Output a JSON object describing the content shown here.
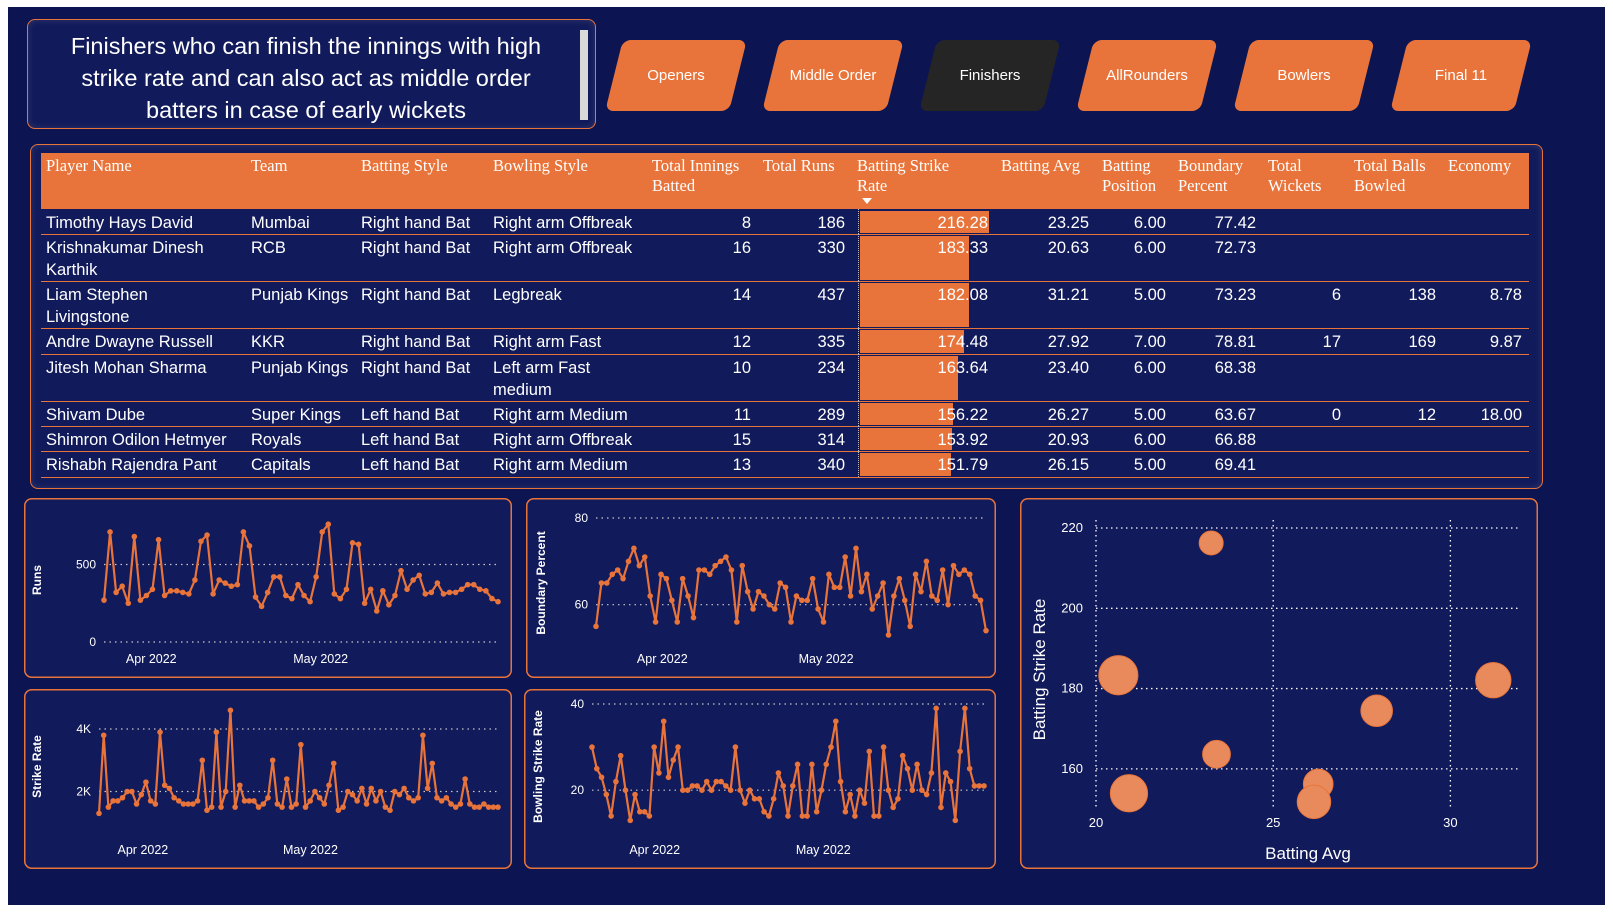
{
  "description": {
    "lines": [
      "Finishers who can finish the innings with high",
      "strike rate and can also act as middle order",
      "batters in case of early wickets"
    ]
  },
  "nav": [
    {
      "label": "Openers",
      "active": false
    },
    {
      "label": "Middle Order",
      "active": false
    },
    {
      "label": "Finishers",
      "active": true
    },
    {
      "label": "AllRounders",
      "active": false
    },
    {
      "label": "Bowlers",
      "active": false
    },
    {
      "label": "Final 11",
      "active": false
    }
  ],
  "table": {
    "headers": {
      "player": "Player Name",
      "team": "Team",
      "batting_style": "Batting Style",
      "bowling_style": "Bowling Style",
      "innings_1": "Total Innings",
      "innings_2": "Batted",
      "runs": "Total Runs",
      "sr_1": "Batting Strike",
      "sr_2": "Rate",
      "avg": "Batting Avg",
      "pos_1": "Batting",
      "pos_2": "Position",
      "bp_1": "Boundary",
      "bp_2": "Percent",
      "wk_1": "Total",
      "wk_2": "Wickets",
      "balls_1": "Total Balls",
      "balls_2": "Bowled",
      "economy": "Economy"
    },
    "sr_max": 216.28,
    "rows": [
      {
        "player_1": "Timothy Hays David",
        "player_2": "",
        "team": "Mumbai",
        "batting_style": "Right hand Bat",
        "bowling_1": "Right arm Offbreak",
        "bowling_2": "",
        "innings": "8",
        "runs": "186",
        "sr": "216.28",
        "sr_value": 216.28,
        "avg": "23.25",
        "pos": "6.00",
        "bp": "77.42",
        "wickets": "",
        "balls": "",
        "economy": ""
      },
      {
        "player_1": "Krishnakumar Dinesh",
        "player_2": "Karthik",
        "team": "RCB",
        "batting_style": "Right hand Bat",
        "bowling_1": "Right arm Offbreak",
        "bowling_2": "",
        "innings": "16",
        "runs": "330",
        "sr": "183.33",
        "sr_value": 183.33,
        "avg": "20.63",
        "pos": "6.00",
        "bp": "72.73",
        "wickets": "",
        "balls": "",
        "economy": ""
      },
      {
        "player_1": "Liam Stephen",
        "player_2": "Livingstone",
        "team": "Punjab Kings",
        "batting_style": "Right hand Bat",
        "bowling_1": "Legbreak",
        "bowling_2": "",
        "innings": "14",
        "runs": "437",
        "sr": "182.08",
        "sr_value": 182.08,
        "avg": "31.21",
        "pos": "5.00",
        "bp": "73.23",
        "wickets": "6",
        "balls": "138",
        "economy": "8.78"
      },
      {
        "player_1": "Andre Dwayne Russell",
        "player_2": "",
        "team": "KKR",
        "batting_style": "Right hand Bat",
        "bowling_1": "Right arm Fast",
        "bowling_2": "",
        "innings": "12",
        "runs": "335",
        "sr": "174.48",
        "sr_value": 174.48,
        "avg": "27.92",
        "pos": "7.00",
        "bp": "78.81",
        "wickets": "17",
        "balls": "169",
        "economy": "9.87"
      },
      {
        "player_1": "Jitesh Mohan Sharma",
        "player_2": "",
        "team": "Punjab Kings",
        "batting_style": "Right hand Bat",
        "bowling_1": "Left arm Fast",
        "bowling_2": "medium",
        "innings": "10",
        "runs": "234",
        "sr": "163.64",
        "sr_value": 163.64,
        "avg": "23.40",
        "pos": "6.00",
        "bp": "68.38",
        "wickets": "",
        "balls": "",
        "economy": ""
      },
      {
        "player_1": "Shivam Dube",
        "player_2": "",
        "team": "Super Kings",
        "batting_style": "Left hand Bat",
        "bowling_1": "Right arm Medium",
        "bowling_2": "",
        "innings": "11",
        "runs": "289",
        "sr": "156.22",
        "sr_value": 156.22,
        "avg": "26.27",
        "pos": "5.00",
        "bp": "63.67",
        "wickets": "0",
        "balls": "12",
        "economy": "18.00"
      },
      {
        "player_1": "Shimron Odilon Hetmyer",
        "player_2": "",
        "team": "Royals",
        "batting_style": "Left hand Bat",
        "bowling_1": "Right arm Offbreak",
        "bowling_2": "",
        "innings": "15",
        "runs": "314",
        "sr": "153.92",
        "sr_value": 153.92,
        "avg": "20.93",
        "pos": "6.00",
        "bp": "66.88",
        "wickets": "",
        "balls": "",
        "economy": ""
      },
      {
        "player_1": "Rishabh Rajendra Pant",
        "player_2": "",
        "team": "Capitals",
        "batting_style": "Left hand Bat",
        "bowling_1": "Right arm Medium",
        "bowling_2": "",
        "innings": "13",
        "runs": "340",
        "sr": "151.79",
        "sr_value": 151.79,
        "avg": "26.15",
        "pos": "5.00",
        "bp": "69.41",
        "wickets": "",
        "balls": "",
        "economy": ""
      }
    ]
  },
  "chart_data": [
    {
      "type": "line",
      "ylabel": "Runs",
      "yticks": [
        {
          "v": 0,
          "label": "0"
        },
        {
          "v": 500,
          "label": "500"
        }
      ],
      "ylim": [
        0,
        800
      ],
      "x_labels": [
        "Apr 2022",
        "May 2022"
      ],
      "x_label_pos": [
        0.12,
        0.55
      ],
      "values": [
        270,
        710,
        320,
        360,
        250,
        680,
        270,
        300,
        340,
        660,
        300,
        330,
        330,
        320,
        310,
        400,
        650,
        690,
        310,
        400,
        380,
        360,
        370,
        710,
        620,
        290,
        230,
        320,
        420,
        420,
        300,
        280,
        370,
        300,
        260,
        420,
        710,
        760,
        310,
        280,
        340,
        640,
        630,
        250,
        340,
        200,
        330,
        240,
        300,
        460,
        340,
        400,
        430,
        310,
        320,
        380,
        310,
        320,
        320,
        340,
        370,
        370,
        340,
        330,
        280,
        260
      ]
    },
    {
      "type": "line",
      "ylabel": "Boundary Percent",
      "yticks": [
        {
          "v": 60,
          "label": "60"
        },
        {
          "v": 80,
          "label": "80"
        }
      ],
      "ylim": [
        50,
        80
      ],
      "x_labels": [
        "Apr 2022",
        "May 2022"
      ],
      "x_label_pos": [
        0.17,
        0.59
      ],
      "values": [
        55,
        65,
        65,
        67,
        68,
        66,
        70,
        73,
        69,
        71,
        62,
        56,
        67,
        66,
        61,
        56,
        66,
        62,
        57,
        68,
        68,
        67,
        69,
        70,
        71,
        68,
        56,
        69,
        63,
        59,
        63,
        62,
        60,
        59,
        65,
        64,
        56,
        62,
        61,
        61,
        66,
        59,
        56,
        67,
        64,
        64,
        71,
        62,
        73,
        63,
        67,
        59,
        62,
        65,
        53,
        62,
        66,
        61,
        55,
        67,
        63,
        70,
        62,
        61,
        68,
        60,
        69,
        67,
        68,
        67,
        62,
        61,
        54
      ]
    },
    {
      "type": "line",
      "ylabel": "Strike Rate",
      "yticks": [
        {
          "v": 2000,
          "label": "2K"
        },
        {
          "v": 4000,
          "label": "4K"
        }
      ],
      "ylim": [
        800,
        4800
      ],
      "x_labels": [
        "Apr 2022",
        "May 2022"
      ],
      "x_label_pos": [
        0.11,
        0.53
      ],
      "values": [
        1300,
        3800,
        1500,
        1700,
        1700,
        1800,
        2000,
        2000,
        1600,
        1900,
        2300,
        1700,
        1600,
        3900,
        2200,
        2100,
        1800,
        1700,
        1600,
        1600,
        1600,
        1700,
        3000,
        1400,
        1500,
        3900,
        1500,
        2000,
        4600,
        1500,
        2200,
        1700,
        1700,
        1700,
        1500,
        1600,
        1800,
        3000,
        1600,
        1500,
        2400,
        1500,
        1600,
        3500,
        1500,
        1700,
        2000,
        1800,
        1600,
        2200,
        2900,
        1400,
        1500,
        2000,
        1900,
        1700,
        2100,
        1600,
        2100,
        1700,
        2000,
        1500,
        1400,
        2000,
        1900,
        2100,
        1800,
        1700,
        1800,
        3800,
        2100,
        2900,
        1800,
        1700,
        1800,
        1600,
        1500,
        1600,
        2400,
        1600,
        1500,
        1500,
        1600,
        1500,
        1500,
        1500
      ]
    },
    {
      "type": "line",
      "ylabel": "Bowling Strike Rate",
      "yticks": [
        {
          "v": 20,
          "label": "20"
        },
        {
          "v": 40,
          "label": "40"
        }
      ],
      "ylim": [
        11,
        40
      ],
      "x_labels": [
        "Apr 2022",
        "May 2022"
      ],
      "x_label_pos": [
        0.16,
        0.59
      ],
      "values": [
        30,
        25,
        23,
        19,
        14,
        22,
        28,
        20,
        13,
        19,
        15,
        15,
        14,
        30,
        24,
        36,
        23,
        27,
        30,
        20,
        20,
        21,
        21,
        20,
        22,
        20,
        22,
        22,
        21,
        20,
        30,
        20,
        17,
        20,
        18,
        18,
        15,
        14,
        18,
        24,
        21,
        14,
        21,
        26,
        14,
        14,
        26,
        15,
        20,
        26,
        30,
        36,
        22,
        15,
        19,
        14,
        20,
        17,
        29,
        14,
        14,
        30,
        20,
        16,
        18,
        28,
        25,
        20,
        26,
        20,
        19,
        24,
        39,
        16,
        24,
        22,
        13,
        29,
        39,
        25,
        21,
        21,
        21
      ]
    },
    {
      "type": "scatter",
      "xlabel": "Batting Avg",
      "ylabel": "Batting Strike Rate",
      "xlim": [
        20,
        32.5
      ],
      "ylim": [
        150,
        222
      ],
      "xticks": [
        20,
        25,
        30
      ],
      "yticks": [
        160,
        180,
        200,
        220
      ],
      "points": [
        {
          "x": 23.25,
          "y": 216.28,
          "size": 8
        },
        {
          "x": 20.63,
          "y": 183.33,
          "size": 16
        },
        {
          "x": 31.21,
          "y": 182.08,
          "size": 14
        },
        {
          "x": 27.92,
          "y": 174.48,
          "size": 12
        },
        {
          "x": 23.4,
          "y": 163.64,
          "size": 10
        },
        {
          "x": 26.27,
          "y": 156.22,
          "size": 11
        },
        {
          "x": 20.93,
          "y": 153.92,
          "size": 15
        },
        {
          "x": 26.15,
          "y": 151.79,
          "size": 13
        }
      ]
    }
  ],
  "colors": {
    "accent": "#e8743b",
    "background": "#0c1452",
    "active_nav": "#252525"
  }
}
